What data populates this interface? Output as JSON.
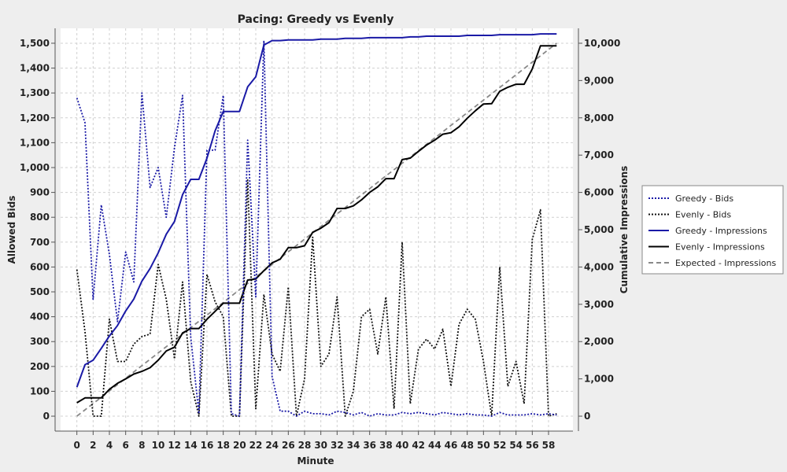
{
  "chart_data": {
    "type": "line",
    "title": "Pacing: Greedy vs Evenly",
    "xlabel": "Minute",
    "ylabel_left": "Allowed Bids",
    "ylabel_right": "Cumulative Impressions",
    "xlim": [
      -2,
      61
    ],
    "ylim_left": [
      -60,
      1560
    ],
    "ylim_right": [
      -400,
      10400
    ],
    "x_ticks": [
      0,
      2,
      4,
      6,
      8,
      10,
      12,
      14,
      16,
      18,
      20,
      22,
      24,
      26,
      28,
      30,
      32,
      34,
      36,
      38,
      40,
      42,
      44,
      46,
      48,
      50,
      52,
      54,
      56,
      58
    ],
    "y_ticks_left": [
      0,
      100,
      200,
      300,
      400,
      500,
      600,
      700,
      800,
      900,
      1000,
      1100,
      1200,
      1300,
      1400,
      1500
    ],
    "y_ticks_left_labels": [
      "0",
      "100",
      "200",
      "300",
      "400",
      "500",
      "600",
      "700",
      "800",
      "900",
      "1,000",
      "1,100",
      "1,200",
      "1,300",
      "1,400",
      "1,500"
    ],
    "y_ticks_right": [
      0,
      1000,
      2000,
      3000,
      4000,
      5000,
      6000,
      7000,
      8000,
      9000,
      10000
    ],
    "y_ticks_right_labels": [
      "0",
      "1,000",
      "2,000",
      "3,000",
      "4,000",
      "5,000",
      "6,000",
      "7,000",
      "8,000",
      "9,000",
      "10,000"
    ],
    "grid": true,
    "legend_position": "right",
    "x": [
      0,
      1,
      2,
      3,
      4,
      5,
      6,
      7,
      8,
      9,
      10,
      11,
      12,
      13,
      14,
      15,
      16,
      17,
      18,
      19,
      20,
      21,
      22,
      23,
      24,
      25,
      26,
      27,
      28,
      29,
      30,
      31,
      32,
      33,
      34,
      35,
      36,
      37,
      38,
      39,
      40,
      41,
      42,
      43,
      44,
      45,
      46,
      47,
      48,
      49,
      50,
      51,
      52,
      53,
      54,
      55,
      56,
      57,
      58,
      59
    ],
    "series": [
      {
        "name": "Greedy - Bids",
        "axis": "left",
        "color": "#1a1aa6",
        "style": "dotted",
        "values": [
          1280,
          1180,
          470,
          850,
          650,
          380,
          660,
          540,
          1300,
          920,
          1000,
          800,
          1080,
          1290,
          320,
          10,
          1070,
          1070,
          1290,
          10,
          0,
          1110,
          480,
          1510,
          160,
          20,
          20,
          0,
          20,
          10,
          10,
          5,
          20,
          15,
          5,
          15,
          0,
          10,
          5,
          5,
          15,
          10,
          15,
          10,
          5,
          15,
          10,
          5,
          10,
          5,
          5,
          0,
          15,
          5,
          5,
          5,
          10,
          5,
          10,
          5
        ]
      },
      {
        "name": "Evenly - Bids",
        "axis": "left",
        "color": "#111111",
        "style": "dotted",
        "values": [
          590,
          340,
          0,
          0,
          390,
          220,
          220,
          290,
          320,
          330,
          610,
          470,
          230,
          540,
          140,
          0,
          570,
          460,
          400,
          0,
          0,
          950,
          30,
          490,
          250,
          180,
          520,
          0,
          150,
          720,
          200,
          250,
          480,
          0,
          100,
          400,
          430,
          250,
          480,
          30,
          700,
          50,
          270,
          310,
          270,
          350,
          120,
          370,
          430,
          390,
          220,
          0,
          600,
          120,
          220,
          50,
          710,
          830,
          0,
          10
        ]
      },
      {
        "name": "Greedy - Impressions",
        "axis": "right",
        "color": "#1a1aa6",
        "style": "solid",
        "values": [
          780,
          1380,
          1500,
          1820,
          2150,
          2430,
          2820,
          3140,
          3620,
          3960,
          4380,
          4880,
          5220,
          5940,
          6350,
          6350,
          6920,
          7650,
          8170,
          8170,
          8170,
          8830,
          9100,
          9950,
          10070,
          10070,
          10090,
          10090,
          10090,
          10090,
          10110,
          10110,
          10110,
          10130,
          10130,
          10130,
          10150,
          10150,
          10150,
          10150,
          10150,
          10170,
          10170,
          10190,
          10190,
          10190,
          10190,
          10190,
          10210,
          10210,
          10210,
          10210,
          10230,
          10230,
          10230,
          10230,
          10230,
          10250,
          10250,
          10250
        ]
      },
      {
        "name": "Evenly - Impressions",
        "axis": "right",
        "color": "#000000",
        "style": "solid",
        "values": [
          360,
          490,
          490,
          490,
          720,
          880,
          1000,
          1130,
          1200,
          1300,
          1500,
          1750,
          1850,
          2230,
          2350,
          2350,
          2600,
          2810,
          3030,
          3030,
          3030,
          3650,
          3680,
          3900,
          4110,
          4210,
          4520,
          4520,
          4570,
          4930,
          5040,
          5190,
          5570,
          5570,
          5640,
          5800,
          6000,
          6150,
          6370,
          6370,
          6880,
          6920,
          7100,
          7270,
          7400,
          7560,
          7600,
          7760,
          7990,
          8190,
          8370,
          8380,
          8710,
          8820,
          8900,
          8900,
          9310,
          9930,
          9930,
          9930
        ]
      },
      {
        "name": "Expected - Impressions",
        "axis": "right",
        "color": "#888888",
        "style": "dashed",
        "values": [
          0,
          169,
          339,
          508,
          678,
          847,
          1017,
          1186,
          1356,
          1525,
          1695,
          1864,
          2034,
          2203,
          2373,
          2542,
          2712,
          2881,
          3051,
          3220,
          3390,
          3559,
          3729,
          3898,
          4068,
          4237,
          4407,
          4576,
          4746,
          4915,
          5085,
          5254,
          5424,
          5593,
          5763,
          5932,
          6102,
          6271,
          6441,
          6610,
          6780,
          6949,
          7119,
          7288,
          7458,
          7627,
          7797,
          7966,
          8136,
          8305,
          8475,
          8644,
          8814,
          8983,
          9153,
          9322,
          9492,
          9661,
          9831,
          10000
        ]
      }
    ]
  }
}
